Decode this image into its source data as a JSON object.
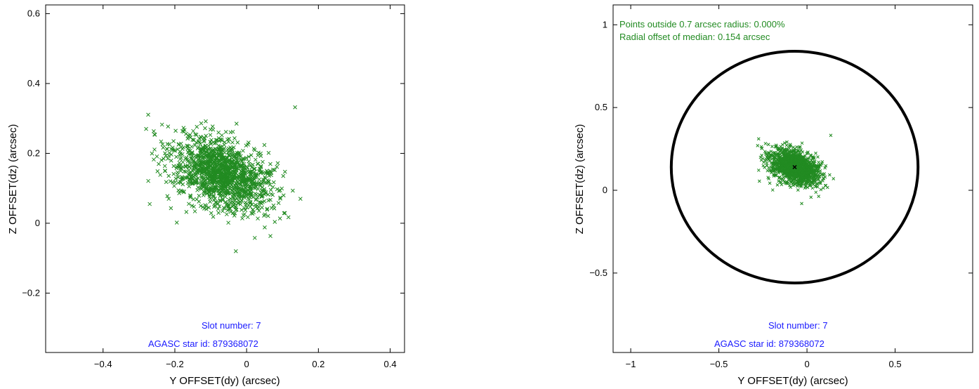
{
  "chart_data": [
    {
      "type": "scatter",
      "xlabel": "Y OFFSET(dy) (arcsec)",
      "ylabel": "Z OFFSET(dz) (arcsec)",
      "xlim": [
        -0.56,
        0.44
      ],
      "ylim": [
        -0.37,
        0.625
      ],
      "xticks": [
        -0.4,
        -0.2,
        0,
        0.2,
        0.4
      ],
      "xtick_labels": [
        "−0.4",
        "−0.2",
        "0",
        "0.2",
        "0.4"
      ],
      "yticks": [
        -0.2,
        0,
        0.2,
        0.4,
        0.6
      ],
      "ytick_labels": [
        "−0.2",
        "0",
        "0.2",
        "0.4",
        "0.6"
      ],
      "marker": "x",
      "point_color": "#228B22",
      "annotation_color": "#1a1aff",
      "cloud": {
        "center": [
          -0.07,
          0.14
        ],
        "extent_x": [
          -0.28,
          0.15
        ],
        "extent_y": [
          -0.08,
          0.335
        ]
      },
      "outliers": [
        [
          0.135,
          0.332
        ],
        [
          -0.28,
          0.27
        ],
        [
          -0.27,
          0.055
        ],
        [
          0.15,
          0.07
        ],
        [
          -0.03,
          -0.08
        ]
      ],
      "annotations": [
        "Slot number: 7",
        "AGASC star id: 879368072"
      ]
    },
    {
      "type": "scatter",
      "xlabel": "Y OFFSET(dy) (arcsec)",
      "ylabel": "Z OFFSET(dz) (arcsec)",
      "xlim": [
        -1.1,
        0.94
      ],
      "ylim": [
        -0.98,
        1.12
      ],
      "xticks": [
        -1,
        -0.5,
        0,
        0.5
      ],
      "xtick_labels": [
        "−1",
        "−0.5",
        "0",
        "0.5"
      ],
      "yticks": [
        -0.5,
        0,
        0.5,
        1
      ],
      "ytick_labels": [
        "−0.5",
        "0",
        "0.5",
        "1"
      ],
      "marker": "x",
      "point_color": "#228B22",
      "annotation_color": "#1a1aff",
      "stats_color": "#228B22",
      "cloud": {
        "center": [
          -0.07,
          0.14
        ],
        "extent_x": [
          -0.28,
          0.15
        ],
        "extent_y": [
          -0.08,
          0.335
        ]
      },
      "outliers": [
        [
          0.135,
          0.332
        ],
        [
          -0.28,
          0.27
        ],
        [
          -0.27,
          0.055
        ],
        [
          0.15,
          0.07
        ],
        [
          -0.03,
          -0.08
        ]
      ],
      "median": [
        -0.07,
        0.14
      ],
      "circle": {
        "center": [
          -0.07,
          0.14
        ],
        "radius": 0.7
      },
      "stats_lines": [
        "Points outside 0.7 arcsec radius: 0.000%",
        "Radial offset of median: 0.154 arcsec"
      ],
      "annotations": [
        "Slot number: 7",
        "AGASC star id: 879368072"
      ]
    }
  ]
}
